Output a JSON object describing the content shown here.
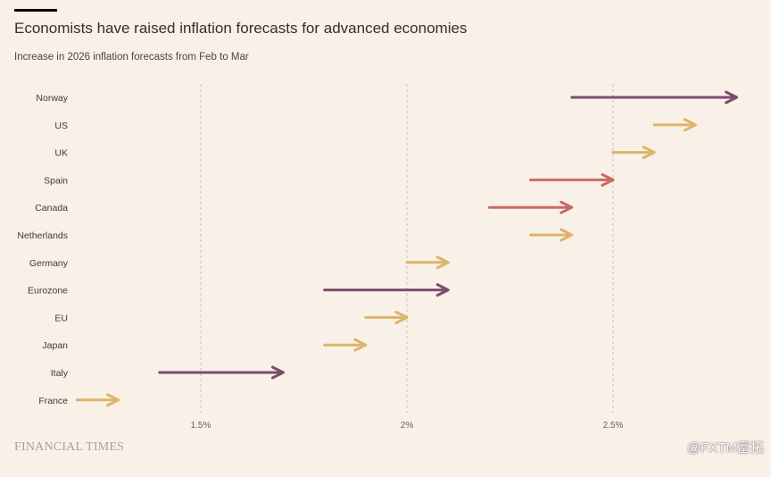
{
  "header": {
    "title": "Economists have raised inflation forecasts for advanced economies",
    "subtitle": "Increase in 2026 inflation forecasts from Feb to Mar"
  },
  "footer": {
    "brand": "FINANCIAL TIMES",
    "watermark": "@FXTM富拓"
  },
  "colors": {
    "background": "#f9f0e7",
    "purple": "#7a4d6e",
    "red": "#c76b64",
    "gold": "#dcb469",
    "grid": "#c9c1ba"
  },
  "chart_data": {
    "type": "arrow",
    "title": "Economists have raised inflation forecasts for advanced economies",
    "subtitle": "Increase in 2026 inflation forecasts from Feb to Mar",
    "xlabel": "",
    "ylabel": "",
    "xlim": [
      1.1,
      2.8
    ],
    "xticks": [
      1.5,
      2,
      2.5
    ],
    "xtick_labels": [
      "1.5%",
      "2%",
      "2.5%"
    ],
    "grid": "vertical dashed",
    "categories": [
      "Norway",
      "US",
      "UK",
      "Spain",
      "Canada",
      "Netherlands",
      "Germany",
      "Eurozone",
      "EU",
      "Japan",
      "Italy",
      "France"
    ],
    "series": [
      {
        "name": "Feb",
        "values": [
          2.4,
          2.6,
          2.5,
          2.3,
          2.2,
          2.3,
          2.0,
          1.8,
          1.9,
          1.8,
          1.4,
          1.2
        ]
      },
      {
        "name": "Mar",
        "values": [
          2.8,
          2.7,
          2.6,
          2.5,
          2.4,
          2.4,
          2.1,
          2.1,
          2.0,
          1.9,
          1.7,
          1.3
        ]
      }
    ],
    "arrow_colors": [
      "purple",
      "gold",
      "gold",
      "red",
      "red",
      "gold",
      "gold",
      "purple",
      "gold",
      "gold",
      "purple",
      "gold"
    ]
  }
}
